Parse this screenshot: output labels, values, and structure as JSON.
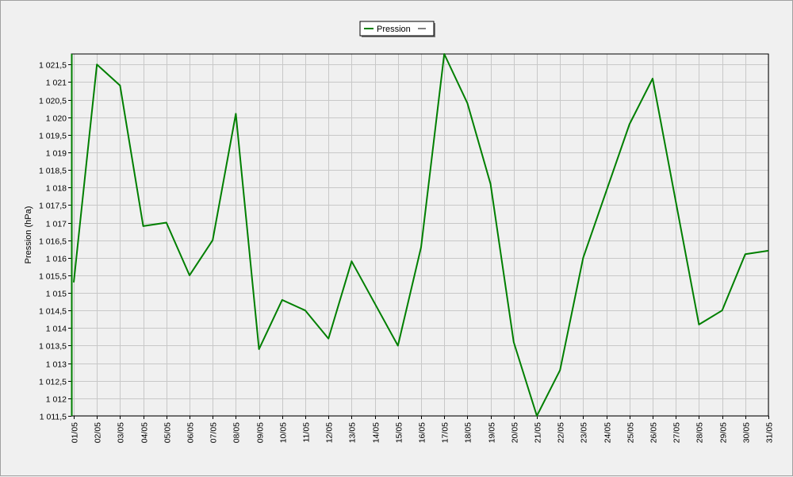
{
  "chart_data": {
    "type": "line",
    "ylabel": "Pression (hPa)",
    "ylim": [
      1011.5,
      1021.8
    ],
    "grid": true,
    "legend_placement": "top-center",
    "y_ticks": [
      "1 011,5",
      "1 012",
      "1 012,5",
      "1 013",
      "1 013,5",
      "1 014",
      "1 014,5",
      "1 015",
      "1 015,5",
      "1 016",
      "1 016,5",
      "1 017",
      "1 017,5",
      "1 018",
      "1 018,5",
      "1 019",
      "1 019,5",
      "1 020",
      "1 020,5",
      "1 021",
      "1 021,5"
    ],
    "categories": [
      "01/05",
      "02/05",
      "03/05",
      "04/05",
      "05/05",
      "06/05",
      "07/05",
      "08/05",
      "09/05",
      "10/05",
      "11/05",
      "12/05",
      "13/05",
      "14/05",
      "15/05",
      "16/05",
      "17/05",
      "18/05",
      "19/05",
      "20/05",
      "21/05",
      "22/05",
      "23/05",
      "24/05",
      "25/05",
      "26/05",
      "27/05",
      "28/05",
      "29/05",
      "30/05",
      "31/05"
    ],
    "series": [
      {
        "name": "Pression",
        "color": "#007f00",
        "values": [
          1015.3,
          1021.5,
          1020.9,
          1016.9,
          1017.0,
          1015.5,
          1016.5,
          1020.1,
          1013.4,
          1014.8,
          1014.5,
          1013.7,
          1015.9,
          1014.7,
          1013.5,
          1016.3,
          1021.8,
          1020.4,
          1018.1,
          1013.6,
          1011.5,
          1012.8,
          1016.0,
          1017.9,
          1019.8,
          1021.1,
          1017.6,
          1014.1,
          1014.5,
          1016.1,
          1016.2
        ]
      }
    ]
  }
}
